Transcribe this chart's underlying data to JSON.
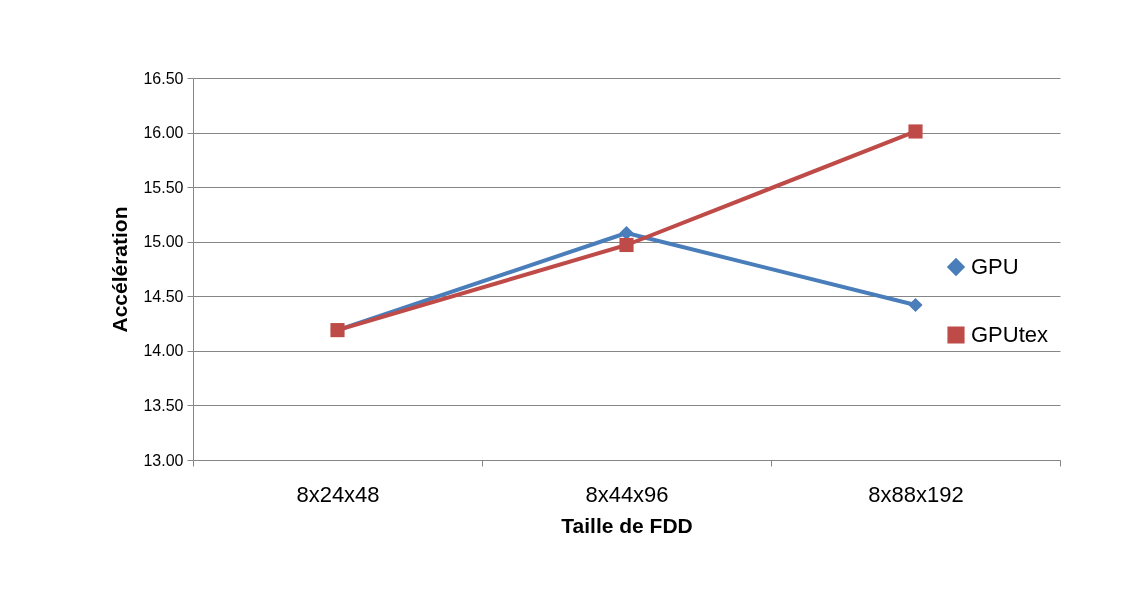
{
  "chart_data": {
    "type": "line",
    "xlabel": "Taille de FDD",
    "ylabel": "Accélération",
    "categories": [
      "8x24x48",
      "8x44x96",
      "8x88x192"
    ],
    "series": [
      {
        "name": "GPU",
        "color": "#4a7ebb",
        "marker": "diamond",
        "values": [
          14.19,
          15.08,
          14.42
        ]
      },
      {
        "name": "GPUtex",
        "color": "#be4b48",
        "marker": "square",
        "values": [
          14.19,
          14.97,
          16.01
        ]
      }
    ],
    "ylim": [
      13,
      16.5
    ],
    "yticks": [
      {
        "value": 13,
        "label": "13.00"
      },
      {
        "value": 13.5,
        "label": "13.50"
      },
      {
        "value": 14,
        "label": "14.00"
      },
      {
        "value": 14.5,
        "label": "14.50"
      },
      {
        "value": 15,
        "label": "15.00"
      },
      {
        "value": 15.5,
        "label": "15.50"
      },
      {
        "value": 16,
        "label": "16.00"
      },
      {
        "value": 16.5,
        "label": "16.50"
      }
    ],
    "grid": "y",
    "legend": "right",
    "line_style": "solid"
  }
}
